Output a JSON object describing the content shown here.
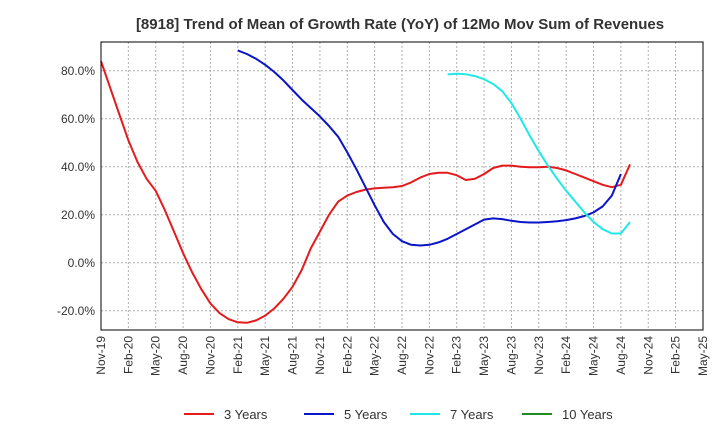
{
  "chart_data": {
    "type": "line",
    "title": "[8918]  Trend of Mean of Growth Rate (YoY) of 12Mo Mov Sum of Revenues",
    "xlabel": "",
    "ylabel": "",
    "ylim": [
      -28,
      92
    ],
    "yticks": [
      -20,
      0,
      20,
      40,
      60,
      80
    ],
    "ytick_labels": [
      "-20.0%",
      "0.0%",
      "20.0%",
      "40.0%",
      "60.0%",
      "80.0%"
    ],
    "grid": true,
    "legend_position": "bottom",
    "x_start": "Nov-19",
    "x_end": "May-25",
    "x_tick_labels": [
      "Nov-19",
      "Feb-20",
      "May-20",
      "Aug-20",
      "Nov-20",
      "Feb-21",
      "May-21",
      "Aug-21",
      "Nov-21",
      "Feb-22",
      "May-22",
      "Aug-22",
      "Nov-22",
      "Feb-23",
      "May-23",
      "Aug-23",
      "Nov-23",
      "Feb-24",
      "May-24",
      "Aug-24",
      "Nov-24",
      "Feb-25",
      "May-25"
    ],
    "series": [
      {
        "name": "3 Years",
        "color": "#e41a1c",
        "start_month_index": 0,
        "values": [
          84.0,
          73.0,
          62.0,
          51.0,
          42.0,
          35.0,
          30.0,
          22.0,
          13.0,
          4.0,
          -4.0,
          -11.0,
          -17.0,
          -21.0,
          -23.5,
          -24.8,
          -25.0,
          -24.0,
          -22.0,
          -19.0,
          -15.0,
          -10.0,
          -3.0,
          6.0,
          13.0,
          20.0,
          25.5,
          28.0,
          29.5,
          30.5,
          31.0,
          31.3,
          31.5,
          32.0,
          33.5,
          35.5,
          37.0,
          37.5,
          37.5,
          36.5,
          34.5,
          35.0,
          37.0,
          39.5,
          40.5,
          40.5,
          40.0,
          39.8,
          39.8,
          40.0,
          39.5,
          38.5,
          37.0,
          35.5,
          34.0,
          32.5,
          31.5,
          32.5,
          41.0
        ]
      },
      {
        "name": "5 Years",
        "color": "#0a14c8",
        "start_month_index": 15,
        "values": [
          88.5,
          87.0,
          85.0,
          82.5,
          79.5,
          76.0,
          72.0,
          68.0,
          64.5,
          61.0,
          57.0,
          52.5,
          46.0,
          39.0,
          31.5,
          24.0,
          17.0,
          12.0,
          9.0,
          7.5,
          7.2,
          7.5,
          8.5,
          10.0,
          12.0,
          14.0,
          16.0,
          18.0,
          18.5,
          18.2,
          17.5,
          17.0,
          16.8,
          16.8,
          17.0,
          17.3,
          17.8,
          18.5,
          19.5,
          21.0,
          23.5,
          28.0,
          37.0
        ]
      },
      {
        "name": "7 Years",
        "color": "#20e8e8",
        "start_month_index": 38,
        "values": [
          78.5,
          78.8,
          78.6,
          77.8,
          76.5,
          74.5,
          71.5,
          66.5,
          60.0,
          53.0,
          46.5,
          40.5,
          35.0,
          30.0,
          25.5,
          21.0,
          17.0,
          14.0,
          12.2,
          12.2,
          17.0
        ]
      },
      {
        "name": "10 Years",
        "color": "#228b22",
        "start_month_index": 0,
        "values": []
      }
    ]
  }
}
